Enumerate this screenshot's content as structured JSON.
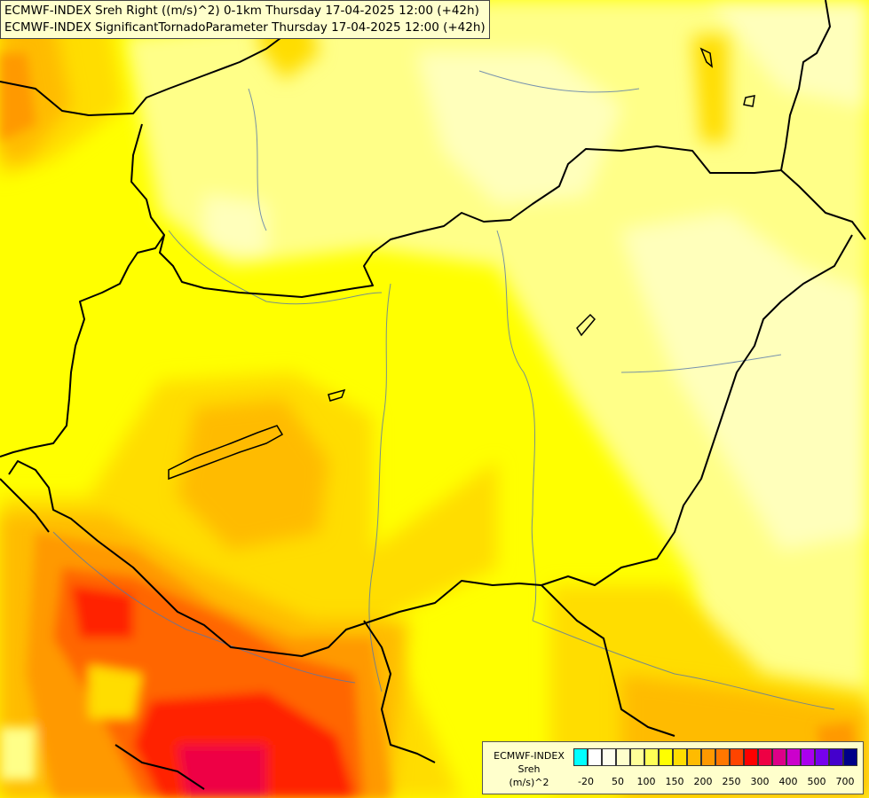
{
  "title": {
    "line1": "ECMWF-INDEX Sreh Right ((m/s)^2) 0-1km Thursday 17-04-2025 12:00 (+42h)",
    "line2": "ECMWF-INDEX SignificantTornadoParameter Thursday 17-04-2025 12:00 (+42h)"
  },
  "legend": {
    "title_l1": "ECMWF-INDEX",
    "title_l2": "Sreh",
    "title_l3": "(m/s)^2",
    "colors": [
      "#00ffff",
      "#ffffff",
      "#ffffee",
      "#ffffcc",
      "#ffff99",
      "#ffff55",
      "#ffff00",
      "#ffdd00",
      "#ffbb00",
      "#ff9900",
      "#ff7700",
      "#ff4400",
      "#ff0000",
      "#ee0044",
      "#dd0088",
      "#cc00cc",
      "#aa00ee",
      "#7700ee",
      "#4400cc",
      "#000088"
    ],
    "tick_labels": [
      "-20",
      "50",
      "100",
      "150",
      "200",
      "250",
      "300",
      "400",
      "500",
      "700"
    ]
  },
  "map": {
    "palette": {
      "pale": "#ffffbb",
      "light": "#ffff88",
      "yellow": "#ffff00",
      "gold": "#ffdd00",
      "amber": "#ffbb00",
      "orange": "#ff9900",
      "deep_orange": "#ff6600",
      "red": "#ff2200",
      "crimson": "#ee0044",
      "border": "#000000",
      "river": "#5577aa"
    }
  }
}
